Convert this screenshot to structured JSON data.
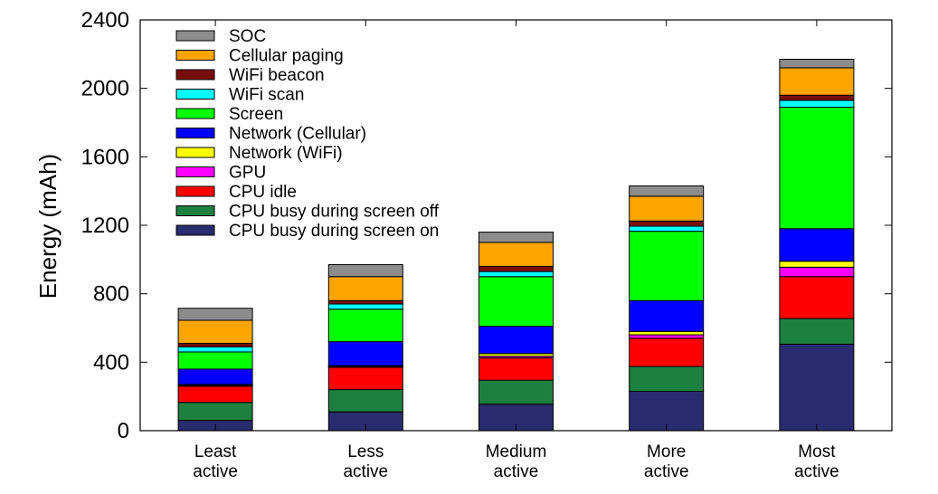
{
  "chart_data": {
    "type": "bar",
    "stacked": true,
    "ylabel": "Energy (mAh)",
    "xlabel": "",
    "ylim": [
      0,
      2400
    ],
    "yticks": [
      "0",
      "400",
      "800",
      "1200",
      "1600",
      "2000",
      "2400"
    ],
    "categories": [
      [
        "Least",
        "active"
      ],
      [
        "Less",
        "active"
      ],
      [
        "Medium",
        "active"
      ],
      [
        "More",
        "active"
      ],
      [
        "Most",
        "active"
      ]
    ],
    "series": [
      {
        "name": "CPU busy during screen on",
        "color": "#2b2b6f",
        "values": [
          60,
          110,
          155,
          230,
          505
        ]
      },
      {
        "name": "CPU busy during screen off",
        "color": "#1e8040",
        "values": [
          105,
          130,
          140,
          145,
          150
        ]
      },
      {
        "name": "CPU idle",
        "color": "#ff0000",
        "values": [
          95,
          130,
          130,
          165,
          245
        ]
      },
      {
        "name": "GPU",
        "color": "#ff00ff",
        "values": [
          5,
          5,
          10,
          20,
          55
        ]
      },
      {
        "name": "Network (WiFi)",
        "color": "#ffff00",
        "values": [
          5,
          5,
          15,
          20,
          35
        ]
      },
      {
        "name": "Network (Cellular)",
        "color": "#0000ff",
        "values": [
          90,
          140,
          160,
          180,
          190
        ]
      },
      {
        "name": "Screen",
        "color": "#00ff00",
        "values": [
          100,
          190,
          290,
          405,
          710
        ]
      },
      {
        "name": "WiFi scan",
        "color": "#00ffff",
        "values": [
          30,
          30,
          30,
          30,
          40
        ]
      },
      {
        "name": "WiFi beacon",
        "color": "#7a0e0e",
        "values": [
          20,
          20,
          30,
          30,
          30
        ]
      },
      {
        "name": "Cellular paging",
        "color": "#ffa500",
        "values": [
          135,
          140,
          140,
          145,
          160
        ]
      },
      {
        "name": "SOC",
        "color": "#8c8c8c",
        "values": [
          70,
          70,
          60,
          60,
          50
        ]
      }
    ],
    "legend_placement": "top-left",
    "legend_order": [
      "SOC",
      "Cellular paging",
      "WiFi beacon",
      "WiFi scan",
      "Screen",
      "Network (Cellular)",
      "Network (WiFi)",
      "GPU",
      "CPU idle",
      "CPU busy during screen off",
      "CPU busy during screen on"
    ],
    "grid": false
  }
}
